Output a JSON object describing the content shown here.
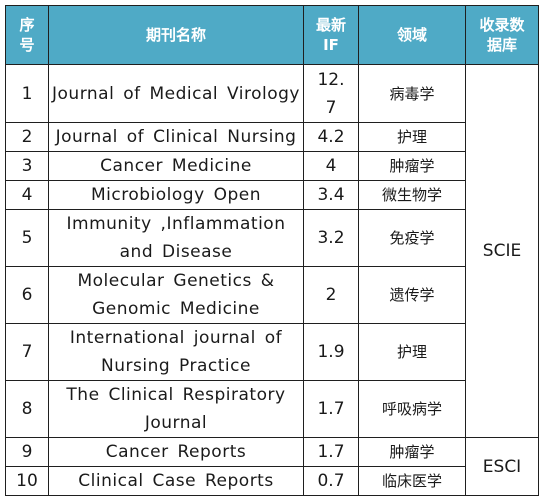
{
  "table": {
    "headers": {
      "index": "序\n号",
      "journal": "期刊名称",
      "if": "最新\nIF",
      "field": "领域",
      "database": "收录数\n据库"
    },
    "rows": [
      {
        "index": "1",
        "journal": "Journal  of Medical Virology",
        "if": "12.\n7",
        "field": "病毒学"
      },
      {
        "index": "2",
        "journal": "Journal  of Clinical Nursing",
        "if": "4.2",
        "field": "护理"
      },
      {
        "index": "3",
        "journal": "Cancer  Medicine",
        "if": "4",
        "field": "肿瘤学"
      },
      {
        "index": "4",
        "journal": "Microbiology  Open",
        "if": "3.4",
        "field": "微生物学"
      },
      {
        "index": "5",
        "journal": "Immunity  ,Inflammation and Disease",
        "if": "3.2",
        "field": "免疫学"
      },
      {
        "index": "6",
        "journal": "Molecular  Genetics & Genomic Medicine",
        "if": "2",
        "field": "遗传学"
      },
      {
        "index": "7",
        "journal": "International  journal of Nursing Practice",
        "if": "1.9",
        "field": "护理"
      },
      {
        "index": "8",
        "journal": "The  Clinical Respiratory Journal",
        "if": "1.7",
        "field": "呼吸病学"
      },
      {
        "index": "9",
        "journal": "Cancer  Reports",
        "if": "1.7",
        "field": "肿瘤学"
      },
      {
        "index": "10",
        "journal": "Clinical  Case Reports",
        "if": "0.7",
        "field": "临床医学"
      }
    ],
    "database_groups": [
      {
        "label": "SCIE"
      },
      {
        "label": "ESCI"
      }
    ]
  }
}
